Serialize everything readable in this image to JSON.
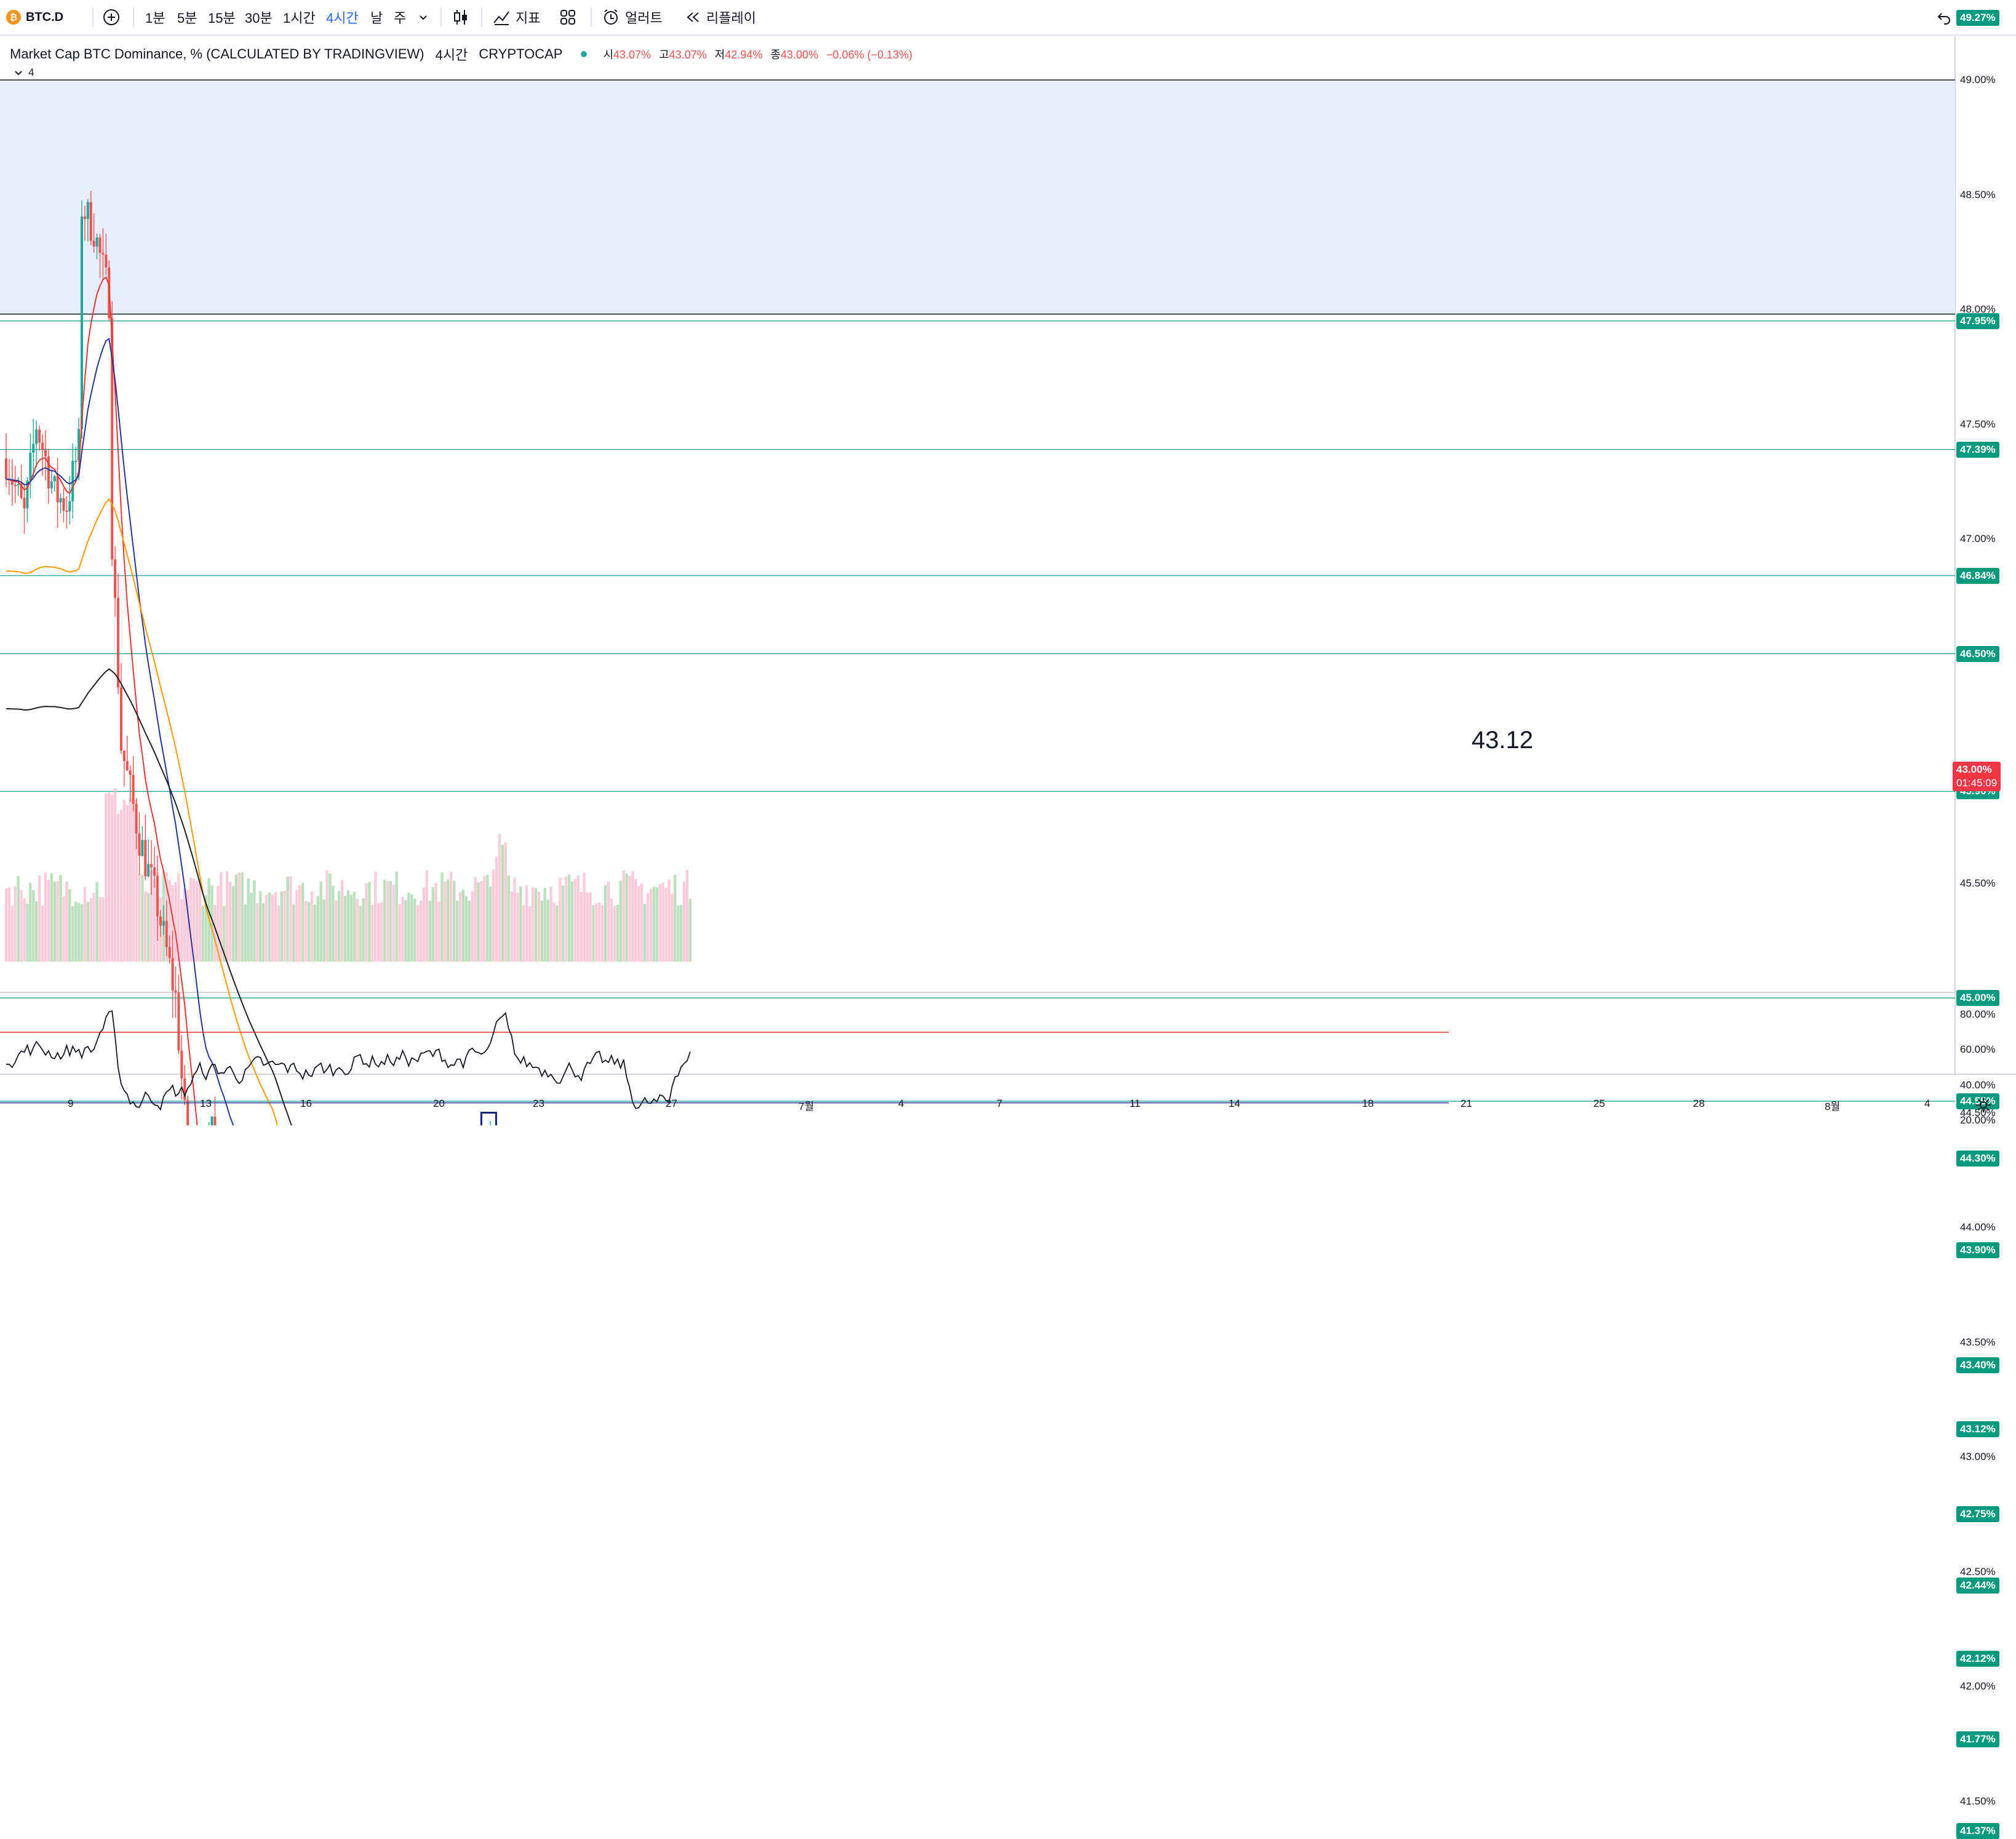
{
  "toolbar": {
    "symbol": "BTC.D",
    "intervals": [
      "1분",
      "5분",
      "15분",
      "30분",
      "1시간",
      "4시간",
      "날",
      "주"
    ],
    "active_interval": "4시간",
    "indicators_label": "지표",
    "alert_label": "얼러트",
    "replay_label": "리플레이"
  },
  "legend": {
    "title": "Market Cap BTC Dominance, % (CALCULATED BY TRADINGVIEW)",
    "interval": "4시간",
    "exchange": "CRYPTOCAP",
    "o_label": "시",
    "o": "43.07%",
    "h_label": "고",
    "h": "43.07%",
    "l_label": "저",
    "l": "42.94%",
    "c_label": "종",
    "c": "43.00%",
    "change": "−0.06% (−0.13%)",
    "collapse_count": "4"
  },
  "annotation": {
    "text": "43.12"
  },
  "colors": {
    "up": "#26a69a",
    "down": "#ef5350",
    "hline": "#089981",
    "zone": "#e8eefc",
    "ma_fast": "#e53935",
    "ma_mid": "#283593",
    "ma_slow": "#ff9800",
    "ma_long": "#212121",
    "rsi_upper": "#e53935",
    "rsi_lower": "#283593"
  },
  "price_axis": [
    "49.00%",
    "48.50%",
    "48.00%",
    "47.50%",
    "47.00%",
    "46.50%",
    "46.00%",
    "45.50%",
    "45.00%",
    "44.50%",
    "44.00%",
    "43.50%",
    "43.00%",
    "42.50%",
    "42.00%",
    "41.50%"
  ],
  "hlines": [
    {
      "value": "49.27%"
    },
    {
      "value": "47.95%"
    },
    {
      "value": "47.39%"
    },
    {
      "value": "46.84%"
    },
    {
      "value": "46.50%"
    },
    {
      "value": "45.90%"
    },
    {
      "value": "45.00%"
    },
    {
      "value": "44.55%"
    },
    {
      "value": "44.30%"
    },
    {
      "value": "43.90%"
    },
    {
      "value": "43.40%"
    },
    {
      "value": "43.12%"
    },
    {
      "value": "42.75%"
    },
    {
      "value": "42.44%"
    },
    {
      "value": "42.12%"
    },
    {
      "value": "41.77%"
    },
    {
      "value": "41.37%"
    }
  ],
  "current_price": {
    "value": "43.00%",
    "countdown": "01:45:09"
  },
  "rsi_axis": [
    "80.00%",
    "60.00%",
    "40.00%",
    "20.00%"
  ],
  "time_axis": [
    "9",
    "13",
    "16",
    "20",
    "23",
    "27",
    "7월",
    "4",
    "7",
    "11",
    "14",
    "18",
    "21",
    "25",
    "28",
    "8월",
    "4"
  ]
}
